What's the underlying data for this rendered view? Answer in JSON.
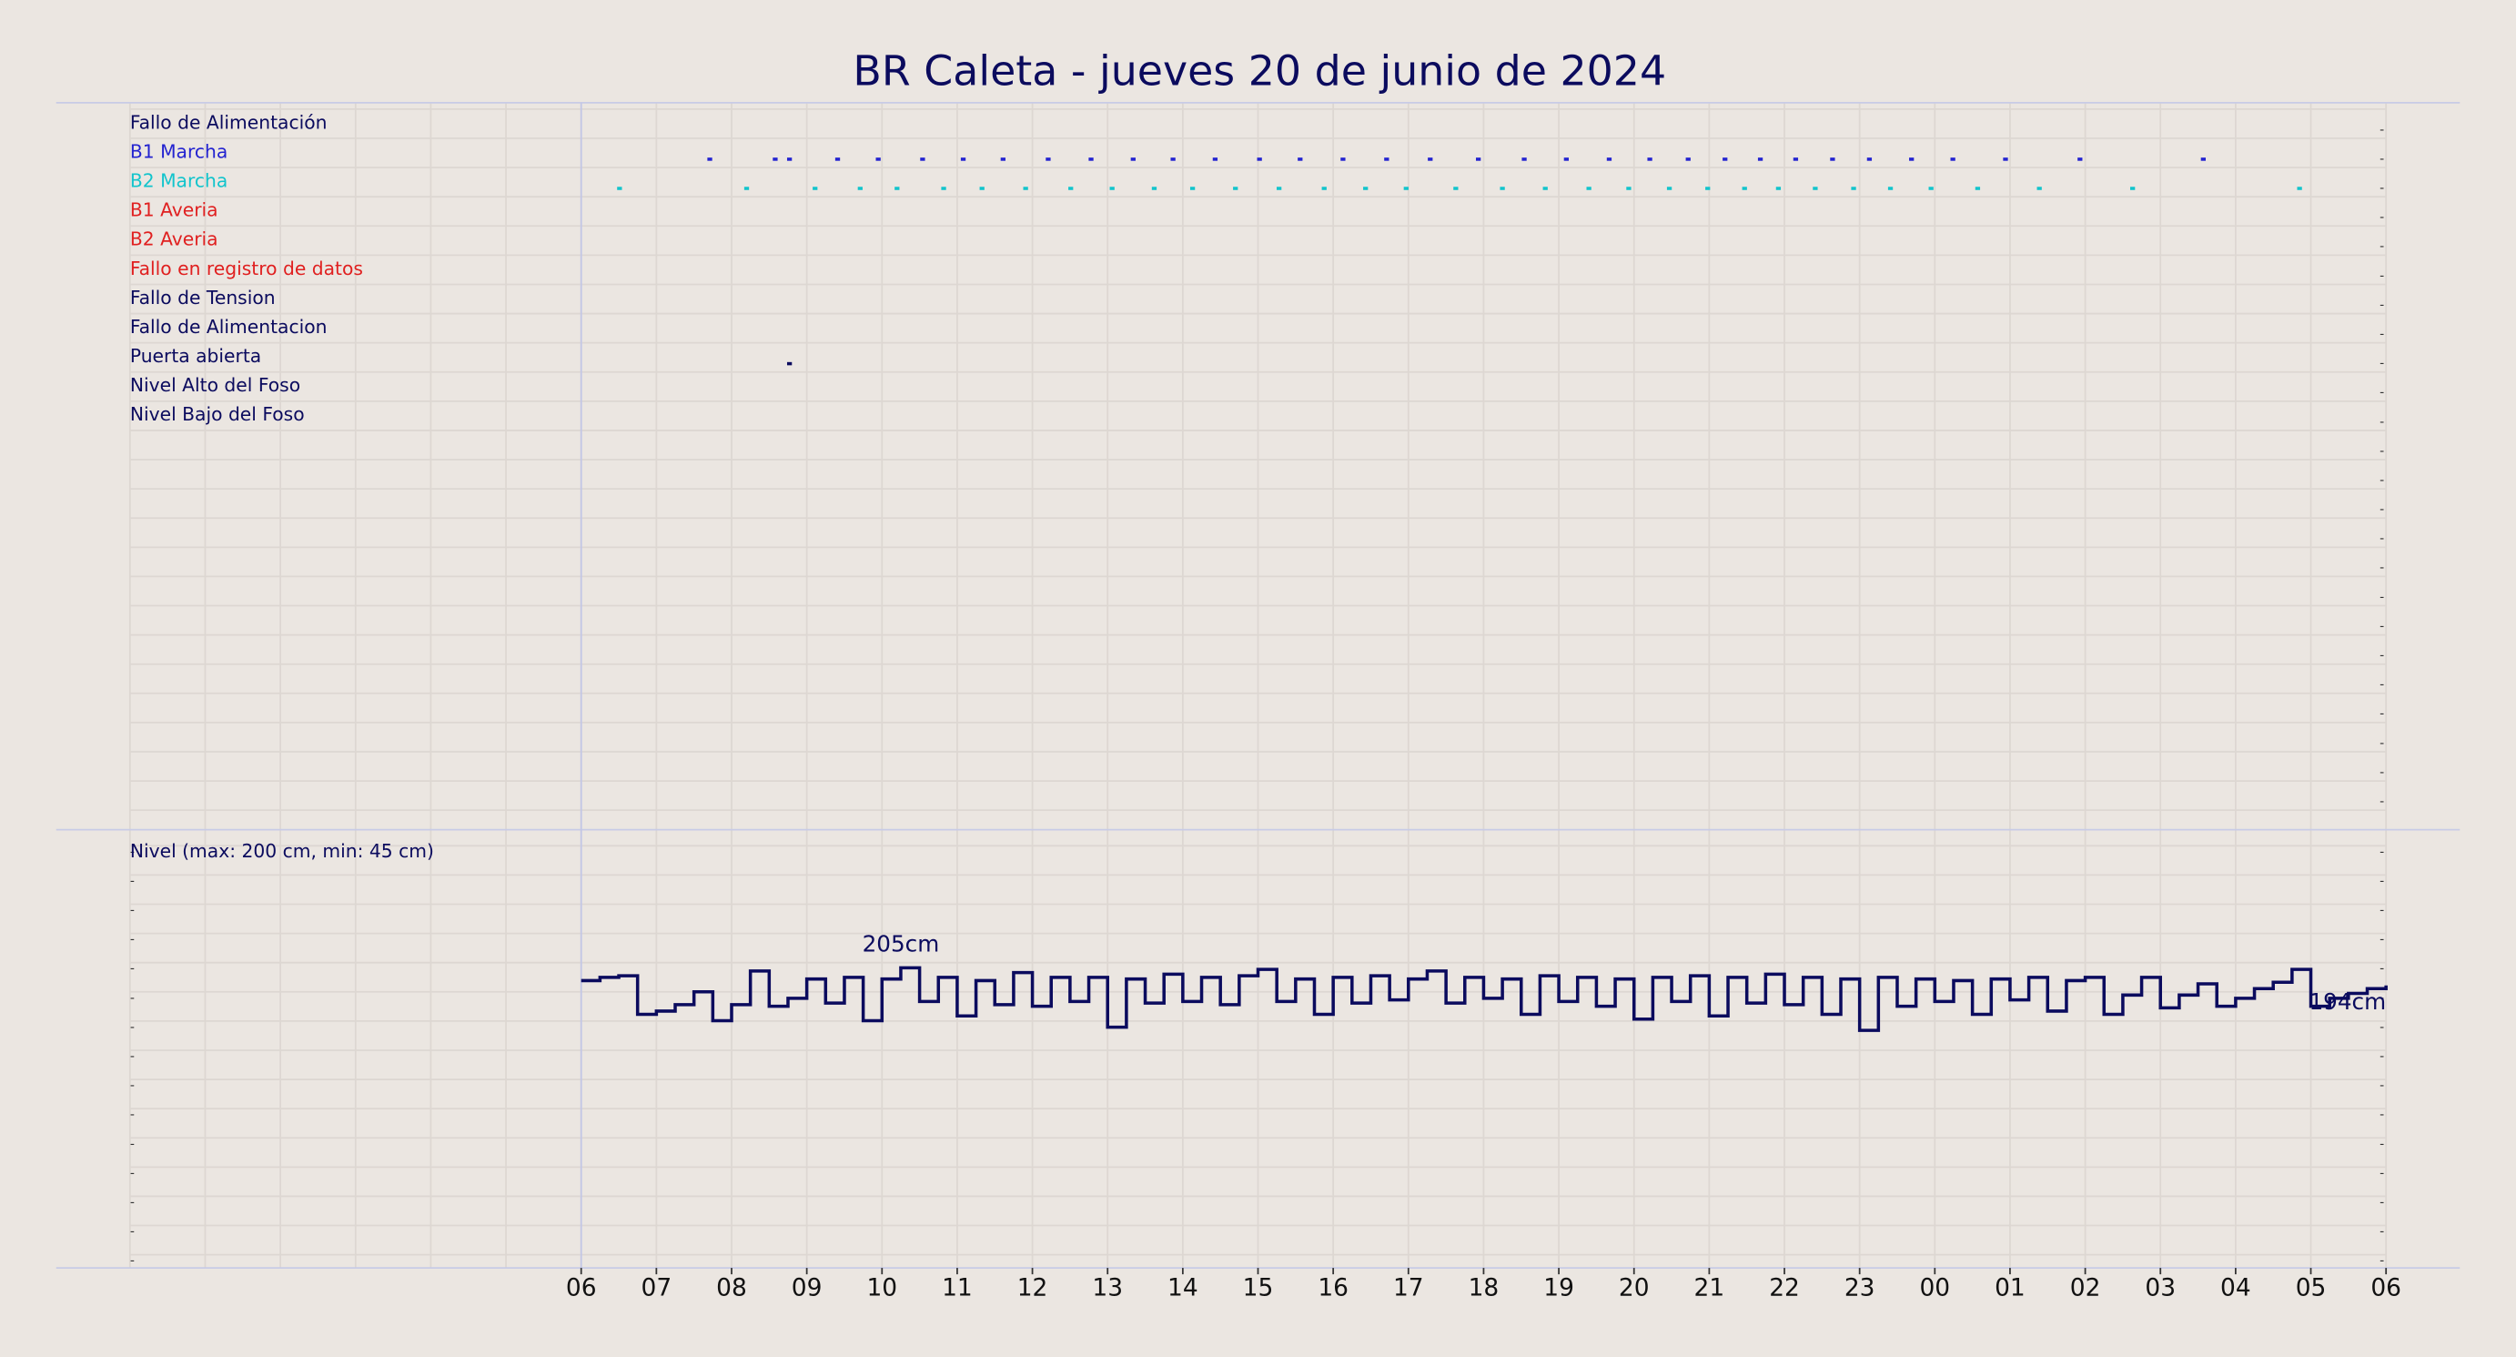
{
  "chart_data": [
    {
      "type": "event",
      "title": "BR Caleta   -   jueves 20 de junio de 2024",
      "xlim": [
        0,
        30
      ],
      "rows": 24,
      "series": [
        {
          "name": "Fallo de Alimentación",
          "color": "#0b0b5e",
          "x": []
        },
        {
          "name": "B1 Marcha",
          "color": "#2323d0",
          "x": [
            7.71,
            8.58,
            8.77,
            9.41,
            9.95,
            10.54,
            11.08,
            11.61,
            12.21,
            12.78,
            13.34,
            13.87,
            14.43,
            15.02,
            15.56,
            16.13,
            16.71,
            17.29,
            17.93,
            18.54,
            19.1,
            19.67,
            20.21,
            20.72,
            21.21,
            21.68,
            22.15,
            22.64,
            23.13,
            23.69,
            24.24,
            24.94,
            25.93,
            27.57
          ]
        },
        {
          "name": "B2 Marcha",
          "color": "#12c4cc",
          "x": [
            6.51,
            8.2,
            9.11,
            9.71,
            10.2,
            10.82,
            11.33,
            11.91,
            12.51,
            13.06,
            13.62,
            14.13,
            14.7,
            15.28,
            15.88,
            16.43,
            16.97,
            17.63,
            18.25,
            18.82,
            19.4,
            19.93,
            20.47,
            20.98,
            21.47,
            21.92,
            22.41,
            22.92,
            23.41,
            23.95,
            24.57,
            25.39,
            26.63,
            28.85
          ]
        },
        {
          "name": "B1 Averia",
          "color": "#e02020",
          "x": []
        },
        {
          "name": "B2 Averia",
          "color": "#e02020",
          "x": []
        },
        {
          "name": "Fallo en registro de datos",
          "color": "#e02020",
          "x": []
        },
        {
          "name": "Fallo de Tension",
          "color": "#0b0b5e",
          "x": []
        },
        {
          "name": "Fallo de Alimentacion",
          "color": "#0b0b5e",
          "x": []
        },
        {
          "name": "Puerta abierta",
          "color": "#0b0b5e",
          "x": [
            8.77
          ]
        },
        {
          "name": "Nivel Alto del Foso",
          "color": "#0b0b5e",
          "x": []
        },
        {
          "name": "Nivel Bajo del Foso",
          "color": "#0b0b5e",
          "x": []
        }
      ]
    },
    {
      "type": "line",
      "title": "Nivel (max: 200 cm, min: 45 cm)",
      "color": "#0b0b5e",
      "step": "post",
      "xlim": [
        0,
        30
      ],
      "ylim": [
        18,
        290
      ],
      "xticks": [
        {
          "value": 6,
          "label": "06"
        },
        {
          "value": 7,
          "label": "07"
        },
        {
          "value": 8,
          "label": "08"
        },
        {
          "value": 9,
          "label": "09"
        },
        10,
        11,
        12,
        13,
        14,
        15,
        16,
        17,
        18,
        19,
        20,
        21,
        22,
        23,
        {
          "value": 24,
          "label": "00"
        },
        {
          "value": 25,
          "label": "01"
        },
        {
          "value": 26,
          "label": "02"
        },
        {
          "value": 27,
          "label": "03"
        },
        {
          "value": 28,
          "label": "04"
        },
        {
          "value": 29,
          "label": "05"
        },
        {
          "value": 30,
          "label": "06"
        }
      ],
      "x": [
        6,
        6.25,
        6.5,
        6.75,
        7,
        7.25,
        7.5,
        7.75,
        8,
        8.25,
        8.5,
        8.75,
        9,
        9.25,
        9.5,
        9.75,
        10,
        10.25,
        10.5,
        10.75,
        11,
        11.25,
        11.5,
        11.75,
        12,
        12.25,
        12.5,
        12.75,
        13,
        13.25,
        13.5,
        13.75,
        14,
        14.25,
        14.5,
        14.75,
        15,
        15.25,
        15.5,
        15.75,
        16,
        16.25,
        16.5,
        16.75,
        17,
        17.25,
        17.5,
        17.75,
        18,
        18.25,
        18.5,
        18.75,
        19,
        19.25,
        19.5,
        19.75,
        20,
        20.25,
        20.5,
        20.75,
        21,
        21.25,
        21.5,
        21.75,
        22,
        22.25,
        22.5,
        22.75,
        23,
        23.25,
        23.5,
        23.75,
        24,
        24.25,
        24.5,
        24.75,
        25,
        25.25,
        25.5,
        25.75,
        26,
        26.25,
        26.5,
        26.75,
        27,
        27.25,
        27.5,
        27.75,
        28,
        28.25,
        28.5,
        28.75,
        29,
        29.25,
        29.5,
        29.75,
        30
      ],
      "values": [
        197,
        199,
        200,
        176,
        178,
        182,
        190,
        172,
        182,
        203,
        181,
        186,
        198,
        183,
        199,
        172,
        198,
        205,
        184,
        199,
        175,
        197,
        182,
        202,
        181,
        199,
        184,
        199,
        168,
        198,
        183,
        201,
        184,
        199,
        182,
        200,
        204,
        184,
        198,
        176,
        199,
        183,
        200,
        185,
        198,
        203,
        183,
        199,
        186,
        198,
        176,
        200,
        184,
        199,
        181,
        198,
        173,
        199,
        184,
        200,
        175,
        199,
        183,
        201,
        182,
        199,
        176,
        198,
        166,
        199,
        181,
        198,
        184,
        197,
        176,
        198,
        185,
        199,
        178,
        197,
        199,
        176,
        188,
        199,
        180,
        188,
        195,
        181,
        186,
        192,
        196,
        204,
        181,
        186,
        189,
        192,
        194
      ],
      "annotations": [
        {
          "text": "205cm",
          "x": 10.25,
          "y": 205
        },
        {
          "text": "194cm",
          "x": 30,
          "y": 194
        }
      ]
    }
  ]
}
